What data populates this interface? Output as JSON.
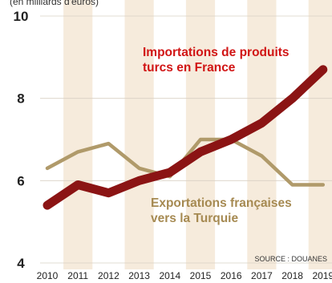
{
  "chart_data": {
    "type": "line",
    "unit_label": "(en milliards d'euros)",
    "x": [
      "2010",
      "2011",
      "2012",
      "2013",
      "2014",
      "2015",
      "2016",
      "2017",
      "2018",
      "2019"
    ],
    "ylim": [
      4,
      10
    ],
    "yticks": [
      "4",
      "6",
      "8",
      "10"
    ],
    "grid": "horizontal",
    "series": [
      {
        "name": "Importations de produits turcs en France",
        "label_lines": [
          "Importations de produits",
          "turcs en France"
        ],
        "color": "#8b1414",
        "values": [
          5.4,
          5.9,
          5.7,
          6.0,
          6.2,
          6.7,
          7.0,
          7.4,
          8.0,
          8.7
        ]
      },
      {
        "name": "Exportations françaises vers la Turquie",
        "label_lines": [
          "Exportations françaises",
          "vers la Turquie"
        ],
        "color": "#b09a6a",
        "values": [
          6.3,
          6.7,
          6.9,
          6.3,
          6.1,
          7.0,
          7.0,
          6.6,
          5.9,
          5.9
        ]
      }
    ],
    "source": "SOURCE : DOUANES",
    "colors": {
      "band": "#f6ebdc",
      "grid": "#d8d0c4",
      "import_label": "#d11515",
      "export_label": "#a68a52"
    }
  }
}
